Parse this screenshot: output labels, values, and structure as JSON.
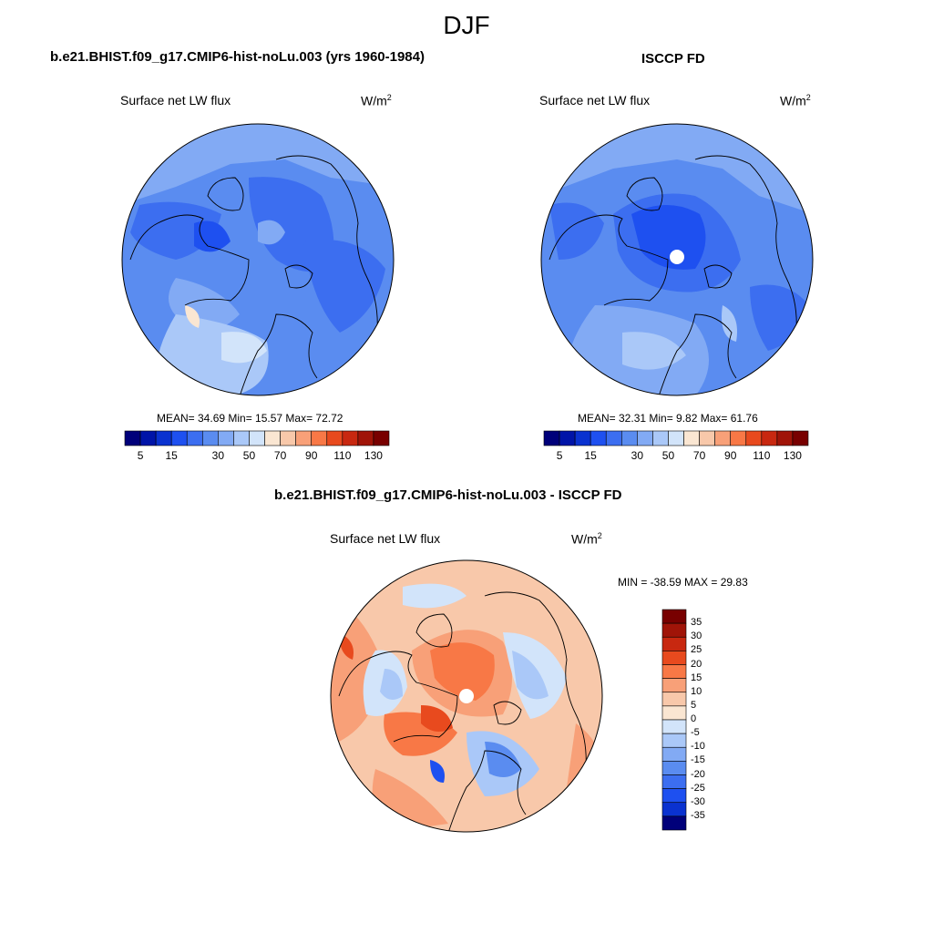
{
  "main_title": "DJF",
  "panels": [
    {
      "title": "b.e21.BHIST.f09_g17.CMIP6-hist-noLu.003 (yrs 1960-1984)",
      "variable": "Surface net LW flux",
      "units_base": "W/m",
      "units_sup": "2",
      "stats": {
        "label": "MEAN=  34.69  Min=  15.57  Max=  72.72",
        "mean": 34.69,
        "min": 15.57,
        "max": 72.72
      }
    },
    {
      "title": "ISCCP FD",
      "variable": "Surface net LW flux",
      "units_base": "W/m",
      "units_sup": "2",
      "stats": {
        "label": "MEAN=  32.31  Min=   9.82  Max=  61.76",
        "mean": 32.31,
        "min": 9.82,
        "max": 61.76
      }
    },
    {
      "title": "b.e21.BHIST.f09_g17.CMIP6-hist-noLu.003 - ISCCP FD",
      "variable": "Surface net LW flux",
      "units_base": "W/m",
      "units_sup": "2",
      "stats": {
        "label": "MIN = -38.59 MAX =  29.83",
        "min": -38.59,
        "max": 29.83
      }
    }
  ],
  "chart_data": {
    "type": "heatmap",
    "projection": "north polar stereographic",
    "season": "DJF",
    "abs_colorbar": {
      "levels": [
        5,
        10,
        15,
        20,
        25,
        30,
        40,
        50,
        60,
        70,
        80,
        90,
        100,
        110,
        120,
        130
      ],
      "tick_labels": [
        "5",
        "15",
        "30",
        "50",
        "70",
        "90",
        "110",
        "130"
      ],
      "colors": [
        "#00007a",
        "#0014a8",
        "#0a32d0",
        "#1e50f0",
        "#3c6ef0",
        "#5a8cf0",
        "#82aaf4",
        "#aac8f8",
        "#d2e4fa",
        "#fae6d2",
        "#f8c8aa",
        "#f8a078",
        "#f87846",
        "#e84a1e",
        "#c82810",
        "#a01408",
        "#780000"
      ]
    },
    "diff_colorbar": {
      "levels": [
        -35,
        -30,
        -25,
        -20,
        -15,
        -10,
        -5,
        0,
        5,
        10,
        15,
        20,
        25,
        30,
        35
      ],
      "tick_labels": [
        "35",
        "30",
        "25",
        "20",
        "15",
        "10",
        "5",
        "0",
        "-5",
        "-10",
        "-15",
        "-20",
        "-25",
        "-30",
        "-35"
      ],
      "colors": [
        "#780000",
        "#a01408",
        "#c82810",
        "#e84a1e",
        "#f87846",
        "#f8a078",
        "#f8c8aa",
        "#fae6d2",
        "#d2e4fa",
        "#aac8f8",
        "#82aaf4",
        "#5a8cf0",
        "#3c6ef0",
        "#1e50f0",
        "#0a32d0",
        "#00007a"
      ]
    }
  }
}
